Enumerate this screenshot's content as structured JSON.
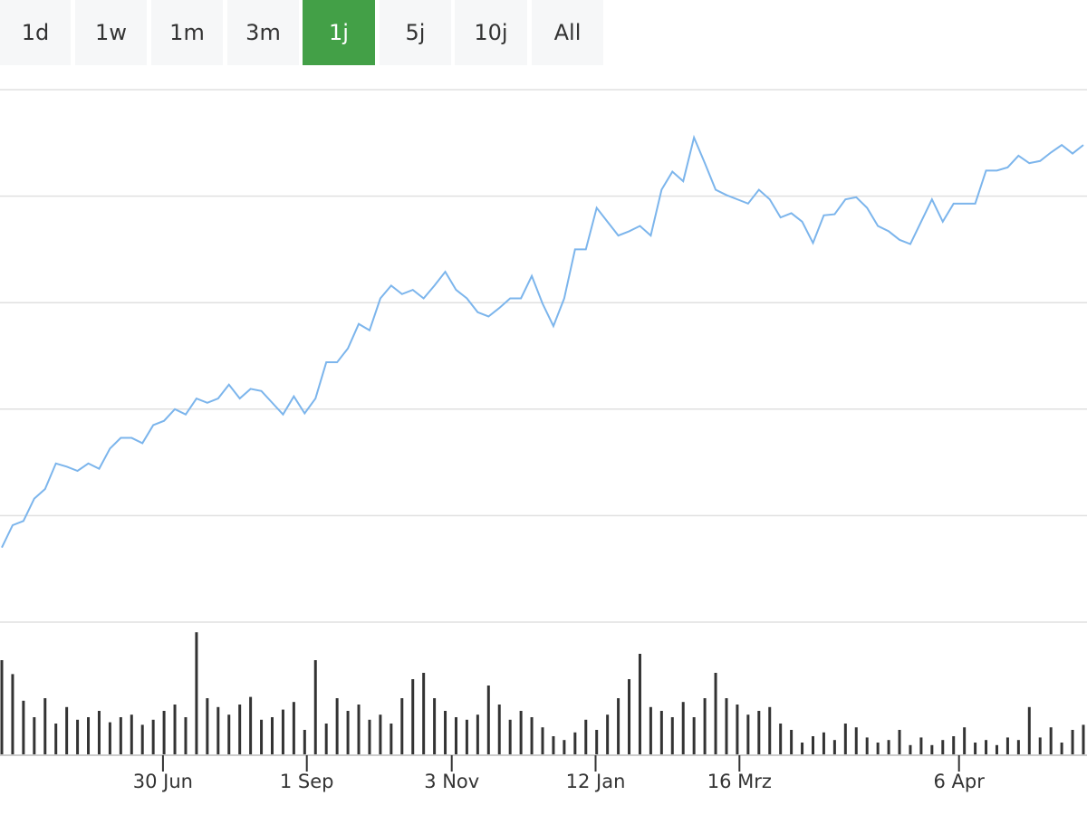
{
  "buttons": {
    "labels": [
      "1d",
      "1w",
      "1m",
      "3m",
      "1j",
      "5j",
      "10j",
      "All"
    ],
    "active": 4,
    "active_color": "#43a047"
  },
  "chart_data": {
    "type": "line",
    "series": [
      {
        "color": "#7cb5ec",
        "values": [
          0.7,
          0.91,
          0.95,
          1.16,
          1.25,
          1.49,
          1.46,
          1.42,
          1.49,
          1.44,
          1.63,
          1.73,
          1.73,
          1.68,
          1.85,
          1.89,
          2.0,
          1.95,
          2.1,
          2.06,
          2.1,
          2.23,
          2.1,
          2.19,
          2.17,
          2.06,
          1.95,
          2.12,
          1.96,
          2.1,
          2.44,
          2.44,
          2.57,
          2.8,
          2.74,
          3.04,
          3.16,
          3.08,
          3.12,
          3.04,
          3.16,
          3.29,
          3.12,
          3.04,
          2.91,
          2.87,
          2.95,
          3.04,
          3.04,
          3.25,
          2.99,
          2.78,
          3.04,
          3.5,
          3.5,
          3.89,
          3.76,
          3.63,
          3.67,
          3.72,
          3.63,
          4.06,
          4.23,
          4.14,
          4.55,
          4.31,
          4.06,
          4.01,
          3.97,
          3.93,
          4.06,
          3.97,
          3.8,
          3.84,
          3.76,
          3.56,
          3.82,
          3.83,
          3.97,
          3.99,
          3.89,
          3.72,
          3.67,
          3.59,
          3.55,
          3.76,
          3.97,
          3.76,
          3.93,
          3.93,
          3.93,
          4.24,
          4.24,
          4.27,
          4.38,
          4.31,
          4.33,
          4.41,
          4.48,
          4.4,
          4.48
        ]
      },
      {
        "type": "bar",
        "axis": "y2",
        "color": "#333333",
        "values": [
          75,
          64,
          43,
          30,
          45,
          25,
          38,
          28,
          30,
          35,
          26,
          30,
          32,
          24,
          28,
          35,
          40,
          30,
          97,
          45,
          38,
          32,
          40,
          46,
          28,
          30,
          36,
          42,
          20,
          75,
          25,
          45,
          35,
          40,
          28,
          32,
          25,
          45,
          60,
          65,
          45,
          35,
          30,
          28,
          32,
          55,
          40,
          28,
          35,
          30,
          22,
          15,
          12,
          18,
          28,
          20,
          32,
          45,
          60,
          80,
          38,
          35,
          30,
          42,
          30,
          45,
          65,
          45,
          40,
          32,
          35,
          38,
          25,
          20,
          10,
          15,
          18,
          12,
          25,
          22,
          14,
          10,
          12,
          20,
          8,
          14,
          8,
          12,
          15,
          22,
          10,
          12,
          8,
          14,
          12,
          38,
          14,
          22,
          10,
          20,
          24
        ]
      }
    ],
    "xlim": [
      0,
      100
    ],
    "xticks": [
      {
        "value": 14.9,
        "label": "30 Jun"
      },
      {
        "value": 28.2,
        "label": "1 Sep"
      },
      {
        "value": 41.6,
        "label": "3 Nov"
      },
      {
        "value": 54.9,
        "label": "12 Jan"
      },
      {
        "value": 68.2,
        "label": "16 Mrz"
      },
      {
        "value": 88.5,
        "label": "6 Apr"
      }
    ],
    "ylim": [
      0,
      5
    ],
    "yticks": [
      0,
      1,
      2,
      3,
      4,
      5
    ],
    "y2lim": [
      0,
      100
    ],
    "grid": true
  }
}
